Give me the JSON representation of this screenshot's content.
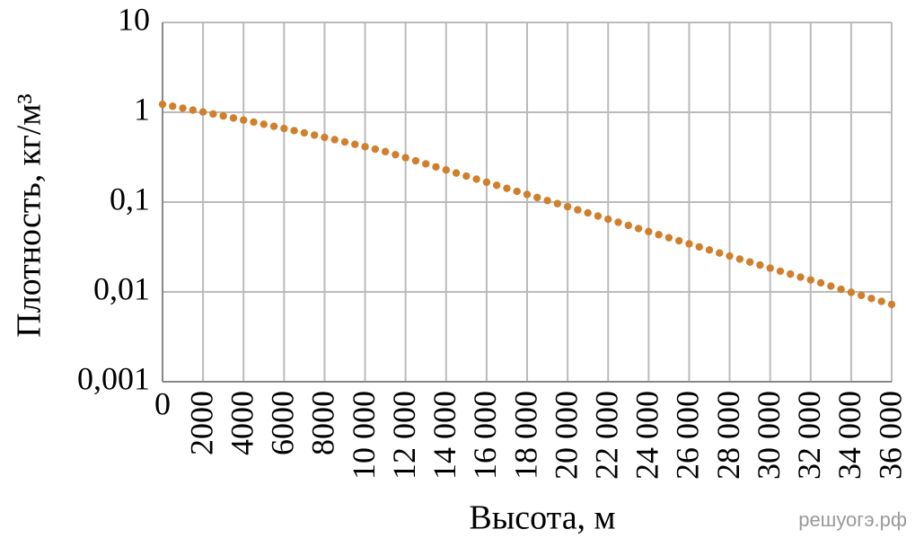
{
  "chart_data": {
    "type": "scatter",
    "log_y": true,
    "grid": true,
    "xlabel": "Высота, м",
    "ylabel": "Плотность, кг/м³",
    "watermark": "решуогэ.рф",
    "color": "#d07f2c",
    "xlim": [
      0,
      36000
    ],
    "ylim": [
      0.001,
      10
    ],
    "xticks": [
      0,
      2000,
      4000,
      6000,
      8000,
      {
        "value": 10000,
        "label": "10 000"
      },
      {
        "value": 12000,
        "label": "12 000"
      },
      {
        "value": 14000,
        "label": "14 000"
      },
      {
        "value": 16000,
        "label": "16 000"
      },
      {
        "value": 18000,
        "label": "18 000"
      },
      {
        "value": 20000,
        "label": "20 000"
      },
      {
        "value": 22000,
        "label": "22 000"
      },
      {
        "value": 24000,
        "label": "24 000"
      },
      {
        "value": 26000,
        "label": "26 000"
      },
      {
        "value": 28000,
        "label": "28 000"
      },
      {
        "value": 30000,
        "label": "30 000"
      },
      {
        "value": 32000,
        "label": "32 000"
      },
      {
        "value": 34000,
        "label": "34 000"
      },
      {
        "value": 36000,
        "label": "36 000"
      }
    ],
    "yticks": [
      {
        "value": 0.001,
        "label": "0,001"
      },
      {
        "value": 0.01,
        "label": "0,01"
      },
      {
        "value": 0.1,
        "label": "0,1"
      },
      1,
      10
    ],
    "x": [
      0,
      500,
      1000,
      1500,
      2000,
      2500,
      3000,
      3500,
      4000,
      4500,
      5000,
      5500,
      6000,
      6500,
      7000,
      7500,
      8000,
      8500,
      9000,
      9500,
      10000,
      10500,
      11000,
      11500,
      12000,
      12500,
      13000,
      13500,
      14000,
      14500,
      15000,
      15500,
      16000,
      16500,
      17000,
      17500,
      18000,
      18500,
      19000,
      19500,
      20000,
      20500,
      21000,
      21500,
      22000,
      22500,
      23000,
      23500,
      24000,
      24500,
      25000,
      25500,
      26000,
      26500,
      27000,
      27500,
      28000,
      28500,
      29000,
      29500,
      30000,
      30500,
      31000,
      31500,
      32000,
      32500,
      33000,
      33500,
      34000,
      34500,
      35000,
      35500,
      36000
    ],
    "values": [
      1.225,
      1.1673,
      1.1117,
      1.0581,
      1.0066,
      0.9569,
      0.9093,
      0.8634,
      0.8194,
      0.777,
      0.7364,
      0.6975,
      0.6601,
      0.6243,
      0.59,
      0.5572,
      0.5258,
      0.4958,
      0.4671,
      0.4397,
      0.4135,
      0.3886,
      0.3648,
      0.3374,
      0.3119,
      0.2883,
      0.2666,
      0.2464,
      0.2279,
      0.2107,
      0.1948,
      0.1801,
      0.1665,
      0.1539,
      0.1423,
      0.1316,
      0.1217,
      0.1125,
      0.104,
      0.0961,
      0.0889,
      0.082,
      0.0757,
      0.0699,
      0.0645,
      0.0596,
      0.055,
      0.0508,
      0.0469,
      0.0434,
      0.0401,
      0.0371,
      0.0343,
      0.0317,
      0.0293,
      0.0271,
      0.0251,
      0.0232,
      0.0215,
      0.0199,
      0.0184,
      0.017,
      0.0158,
      0.0146,
      0.0136,
      0.0126,
      0.0116,
      0.0107,
      0.00989,
      0.00915,
      0.00846,
      0.00784,
      0.00726
    ]
  }
}
